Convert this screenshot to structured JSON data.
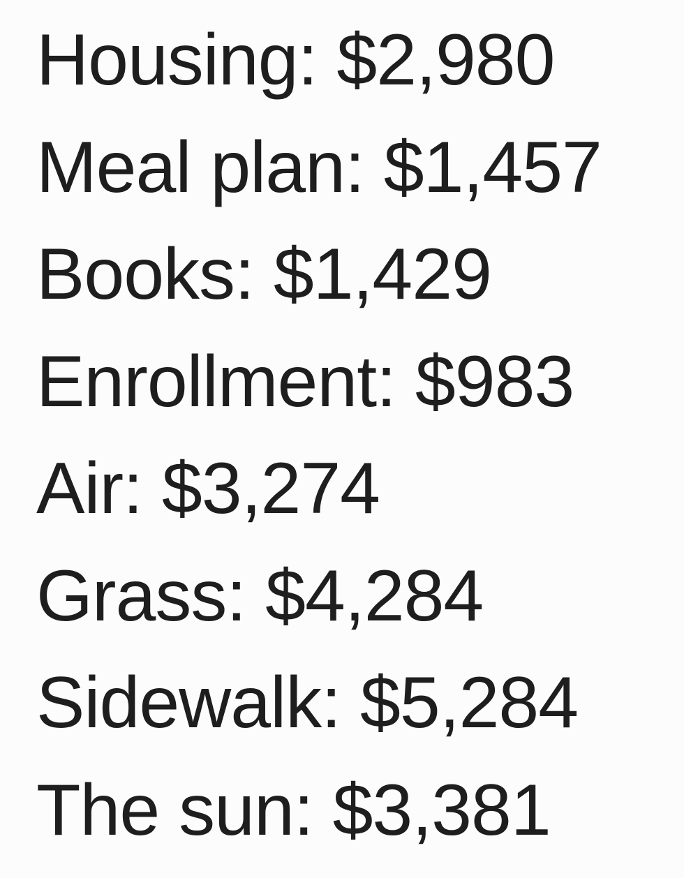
{
  "items": [
    {
      "label": "Housing:",
      "value": "$2,980"
    },
    {
      "label": "Meal plan:",
      "value": "$1,457"
    },
    {
      "label": "Books:",
      "value": "$1,429"
    },
    {
      "label": "Enrollment:",
      "value": "$983"
    },
    {
      "label": "Air:",
      "value": "$3,274"
    },
    {
      "label": "Grass:",
      "value": "$4,284"
    },
    {
      "label": "Sidewalk:",
      "value": "$5,284"
    },
    {
      "label": "The sun:",
      "value": "$3,381"
    }
  ]
}
